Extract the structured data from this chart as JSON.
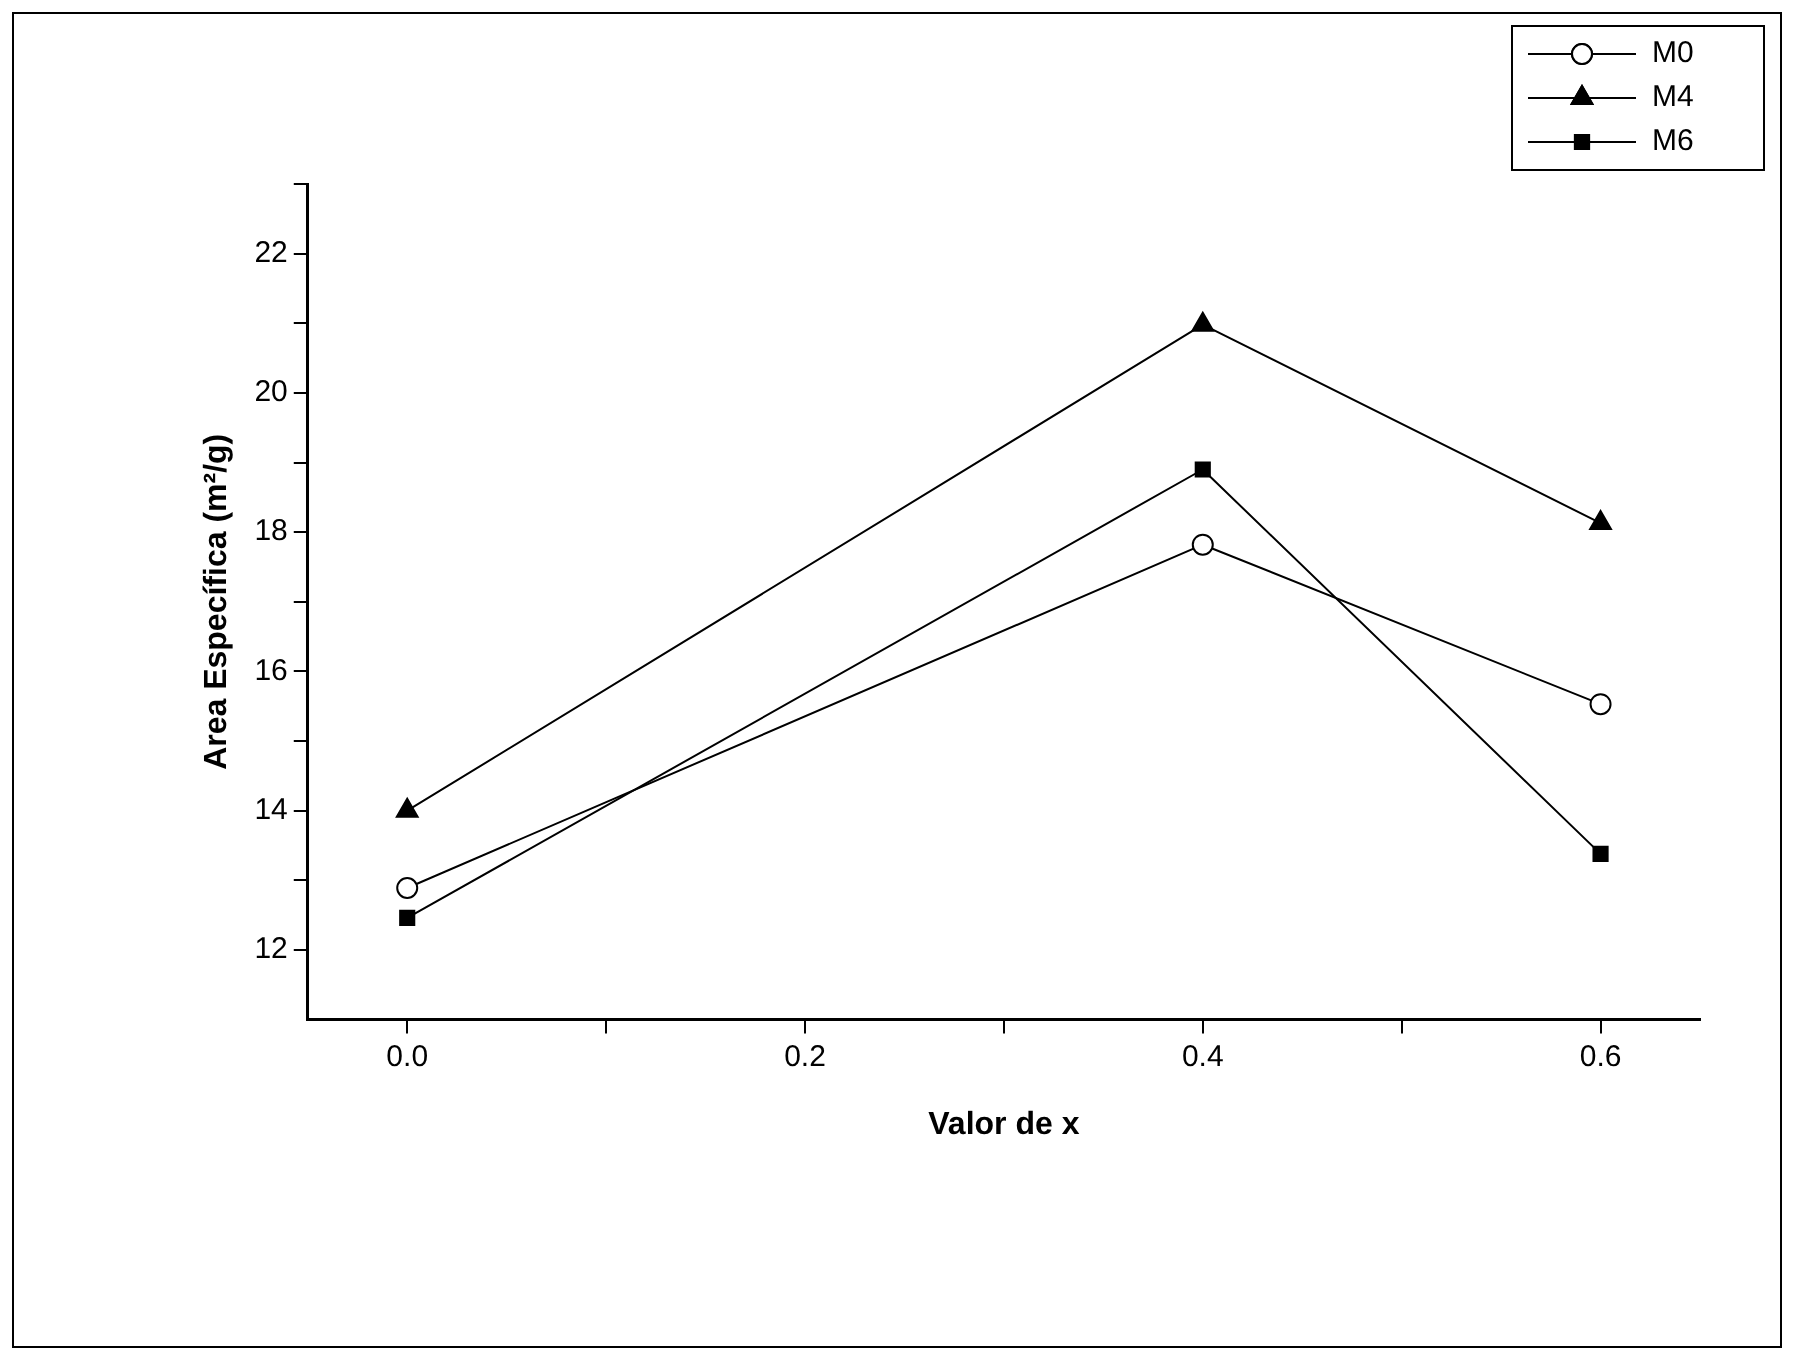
{
  "chart_data": {
    "type": "line",
    "xlabel": "Valor de x",
    "ylabel": "Area Específica (m²/g)",
    "x": [
      0.0,
      0.4,
      0.6
    ],
    "series": [
      {
        "name": "M0",
        "color": "#000000",
        "marker": "circle",
        "values": [
          12.89,
          17.82,
          15.53
        ]
      },
      {
        "name": "M4",
        "color": "#000000",
        "marker": "triangle",
        "values": [
          14.0,
          20.98,
          18.13
        ]
      },
      {
        "name": "M6",
        "color": "#000000",
        "marker": "square",
        "values": [
          12.46,
          18.9,
          13.38
        ]
      }
    ],
    "xlim": [
      -0.05,
      0.65
    ],
    "xticks": [
      {
        "value": 0.0,
        "label": "0.0"
      },
      {
        "value": 0.1,
        "label": null
      },
      {
        "value": 0.2,
        "label": "0.2"
      },
      {
        "value": 0.3,
        "label": null
      },
      {
        "value": 0.4,
        "label": "0.4"
      },
      {
        "value": 0.5,
        "label": null
      },
      {
        "value": 0.6,
        "label": "0.6"
      }
    ],
    "ylim": [
      11,
      23
    ],
    "yticks": [
      {
        "value": 12,
        "label": "12"
      },
      {
        "value": 13,
        "label": null
      },
      {
        "value": 14,
        "label": "14"
      },
      {
        "value": 15,
        "label": null
      },
      {
        "value": 16,
        "label": "16"
      },
      {
        "value": 17,
        "label": null
      },
      {
        "value": 18,
        "label": "18"
      },
      {
        "value": 19,
        "label": null
      },
      {
        "value": 20,
        "label": "20"
      },
      {
        "value": 21,
        "label": null
      },
      {
        "value": 22,
        "label": "22"
      },
      {
        "value": 23,
        "label": null
      }
    ],
    "grid": false,
    "legend": "top right",
    "line_style": "solid"
  }
}
